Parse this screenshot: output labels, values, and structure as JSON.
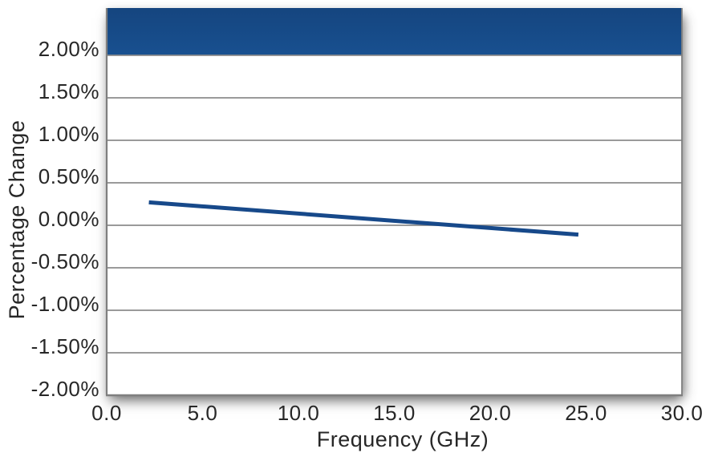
{
  "figure": {
    "background": "#FFFFFF"
  },
  "chart_data": {
    "type": "line",
    "title": "",
    "xlabel": "Frequency (GHz)",
    "ylabel": "Percentage Change",
    "xlim": [
      0,
      30
    ],
    "ylim_percent": [
      -2.0,
      2.0
    ],
    "x_ticks": [
      0,
      5,
      10,
      15,
      20,
      25,
      30
    ],
    "x_tick_labels": [
      "0.0",
      "5.0",
      "10.0",
      "15.0",
      "20.0",
      "25.0",
      "30.0"
    ],
    "y_ticks_percent": [
      2.0,
      1.5,
      1.0,
      0.5,
      0.0,
      -0.5,
      -1.0,
      -1.5,
      -2.0
    ],
    "y_tick_labels": [
      "2.00%",
      "1.50%",
      "1.00%",
      "0.50%",
      "0.00%",
      "-0.50%",
      "-1.00%",
      "-1.50%",
      "-2.00%"
    ],
    "grid": "horizontal",
    "legend": "none",
    "series": [
      {
        "name": "percentage-change",
        "shape": "straight-line",
        "color": "#17498A",
        "stroke_width": 5,
        "points_x_ghz": [
          2.2,
          24.6
        ],
        "points_y_percent": [
          0.27,
          -0.11
        ]
      }
    ],
    "top_banner": {
      "description": "solid blue band filling plot area above the 2.00% gridline",
      "color_top": "#15457F",
      "color_bottom": "#185090"
    },
    "colors": {
      "gridline": "#8C8C8C",
      "axis": "#7F7F7F",
      "tick_text": "#272727"
    }
  }
}
